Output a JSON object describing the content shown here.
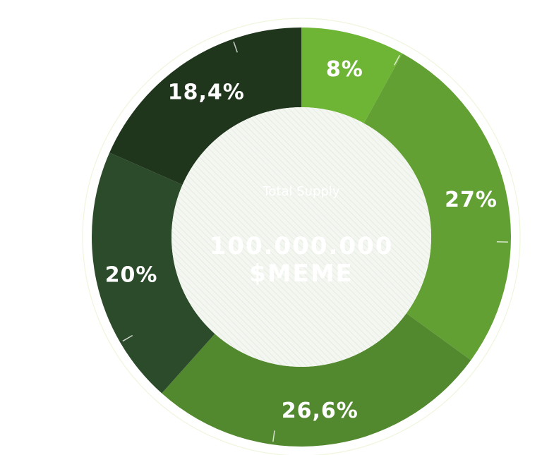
{
  "chart_data": {
    "type": "pie",
    "donut": true,
    "center": {
      "subtitle": "Total Supply",
      "title_line1": "100.000.000",
      "title_line2": "$MEME"
    },
    "slices": [
      {
        "value": 8,
        "label": "8%",
        "color": "#6eb536"
      },
      {
        "value": 27,
        "label": "27%",
        "color": "#62a033"
      },
      {
        "value": 26.6,
        "label": "26,6%",
        "color": "#52882e"
      },
      {
        "value": 20,
        "label": "20%",
        "color": "#2c4b2b"
      },
      {
        "value": 18.4,
        "label": "18,4%",
        "color": "#1f351c"
      }
    ],
    "legend": "none"
  }
}
